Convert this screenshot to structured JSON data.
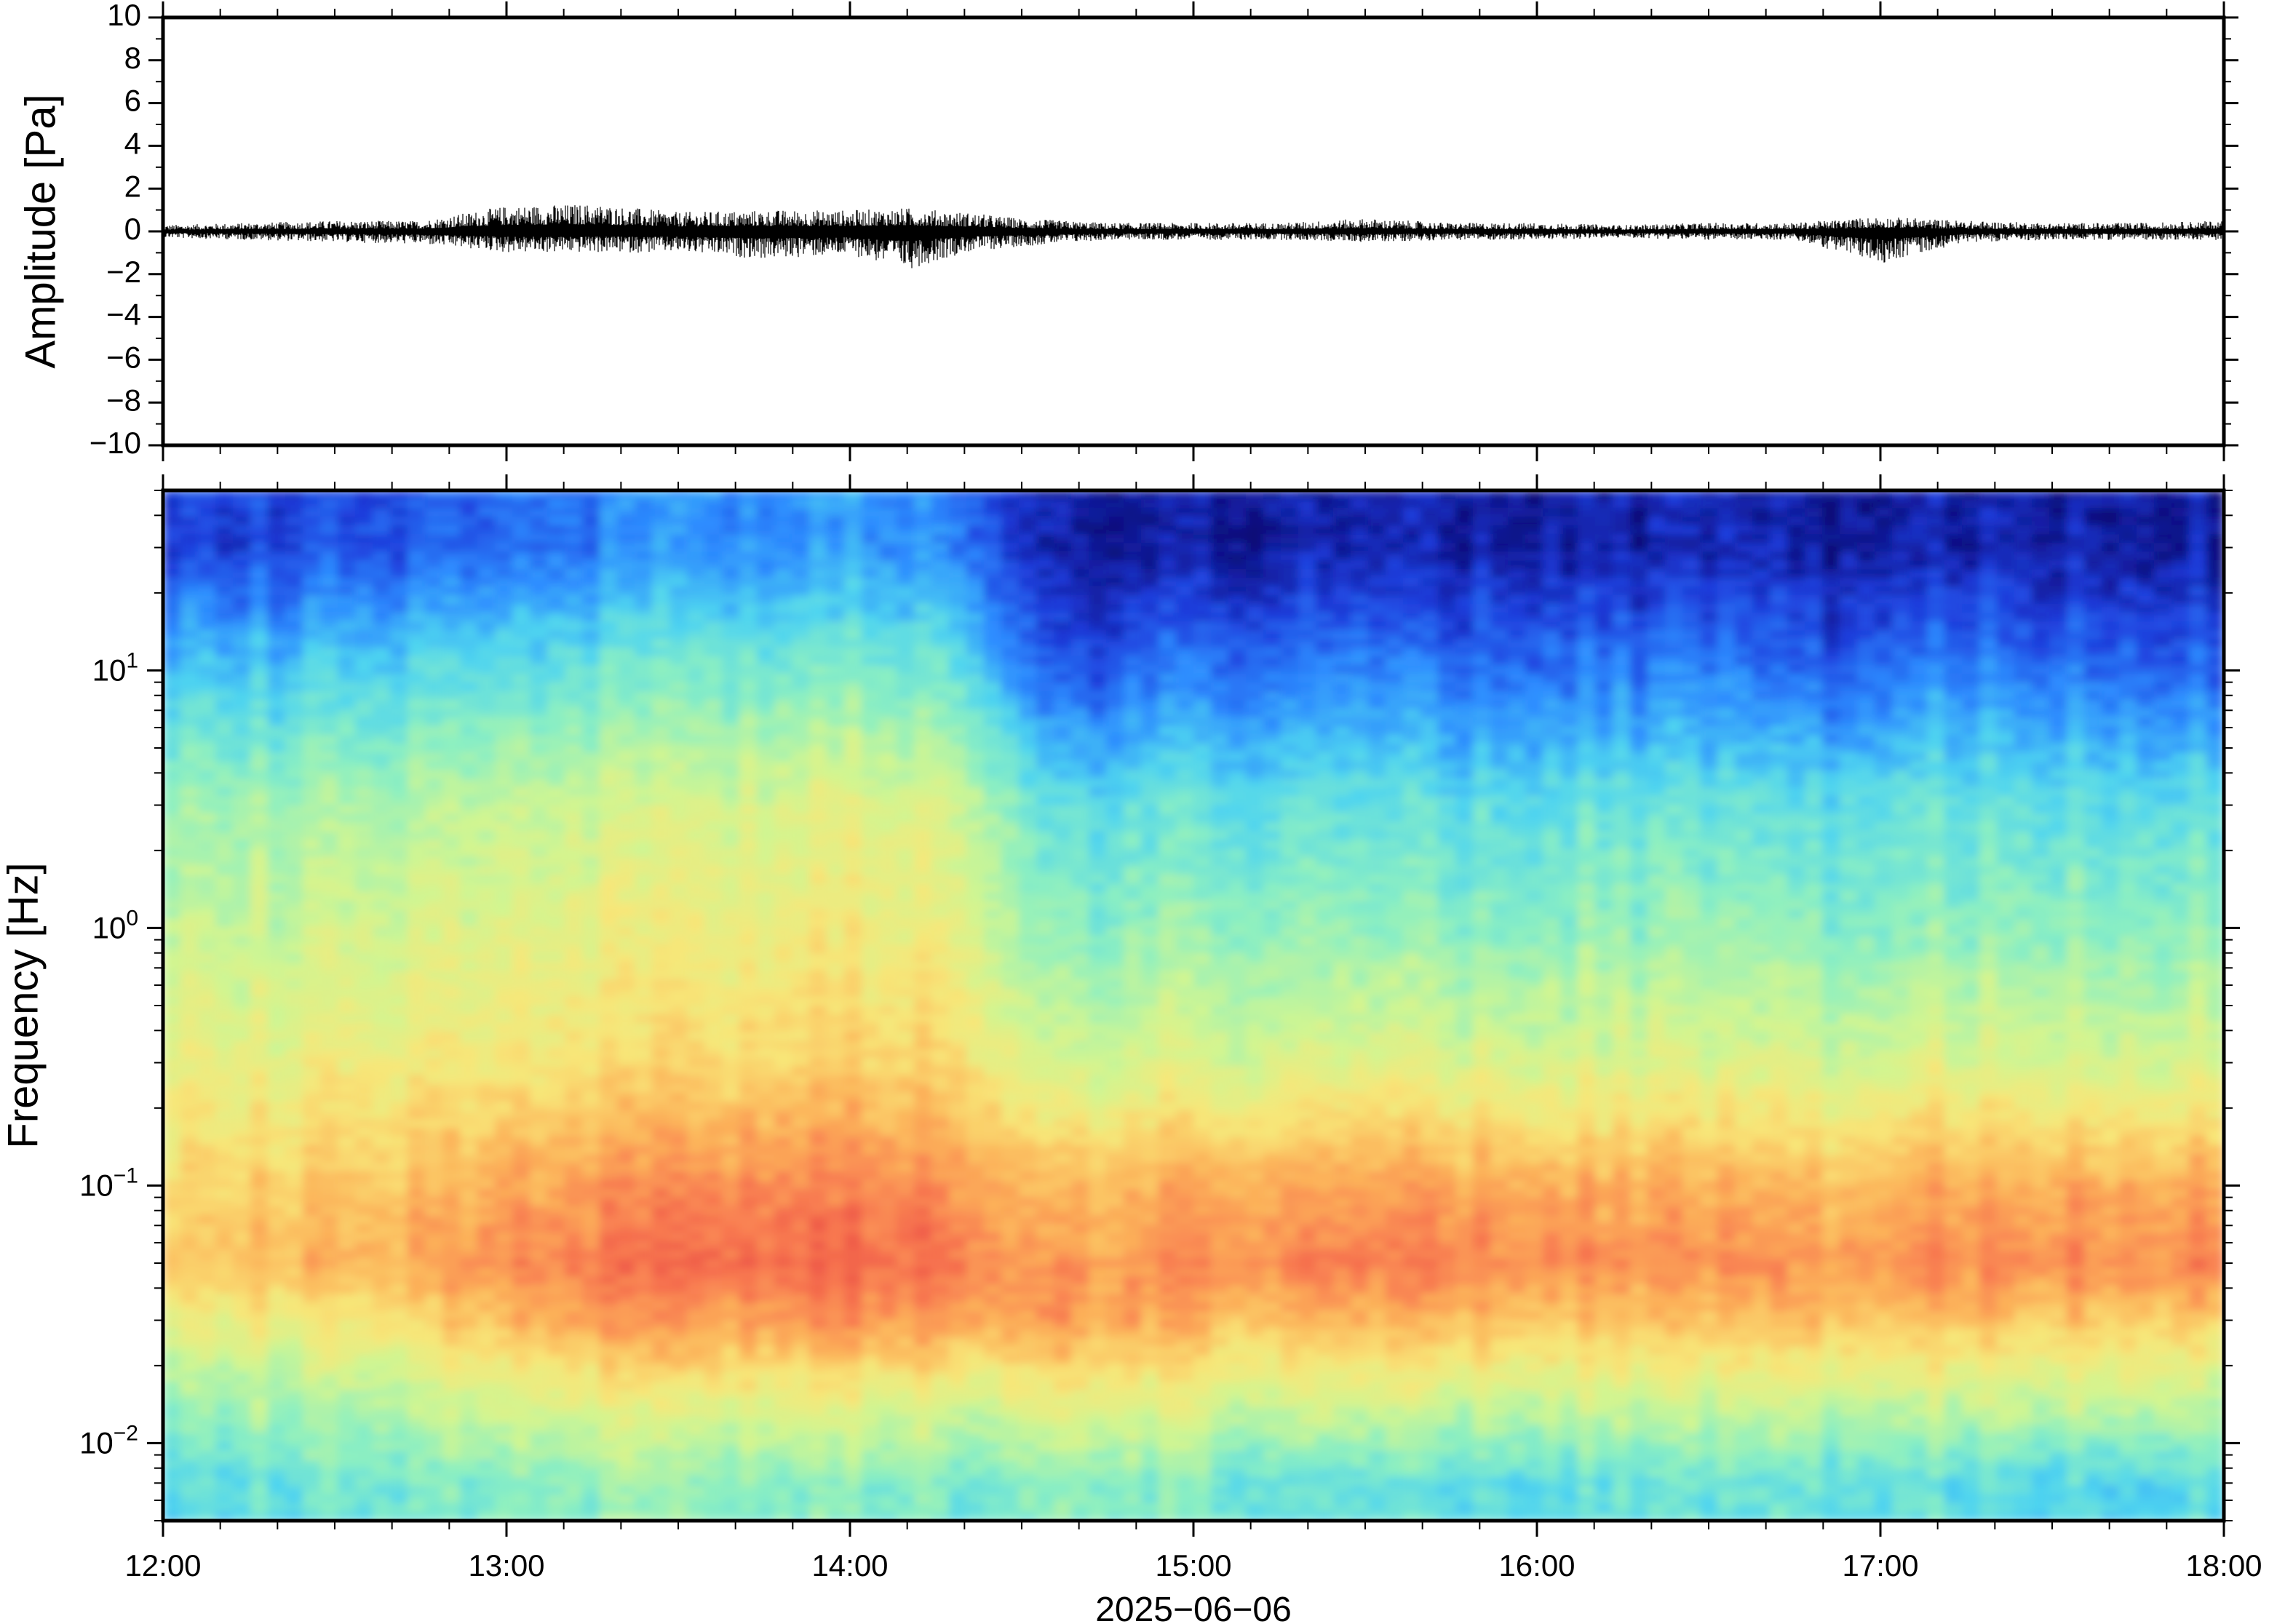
{
  "chart_data": [
    {
      "type": "line",
      "panel": "waveform",
      "ylabel": "Amplitude [Pa]",
      "ylim": [
        -10,
        10
      ],
      "yticks": [
        10,
        8,
        6,
        4,
        2,
        0,
        -2,
        -4,
        -6,
        -8,
        -10
      ],
      "ytick_labels": [
        "10",
        "8",
        "6",
        "4",
        "2",
        "0",
        "−2",
        "−4",
        "−6",
        "−8",
        "−10"
      ],
      "xlim": [
        "12:00",
        "18:00"
      ],
      "line_color": "#000000",
      "series": [
        {
          "x": [
            "12:00",
            "12:15",
            "12:30",
            "12:45",
            "13:00",
            "13:15",
            "13:30",
            "13:45",
            "14:00",
            "14:10",
            "14:20",
            "14:30",
            "14:45",
            "15:00",
            "15:15",
            "15:30",
            "15:45",
            "16:00",
            "16:15",
            "16:30",
            "16:45",
            "17:00",
            "17:15",
            "17:30",
            "17:45",
            "18:00"
          ],
          "y_max": [
            0.3,
            0.4,
            0.5,
            0.5,
            1.2,
            1.3,
            0.9,
            1.0,
            1.0,
            1.1,
            0.9,
            0.6,
            0.4,
            0.4,
            0.4,
            0.6,
            0.4,
            0.4,
            0.3,
            0.4,
            0.4,
            0.7,
            0.5,
            0.4,
            0.4,
            0.5
          ],
          "y_min": [
            -0.3,
            -0.4,
            -0.5,
            -0.6,
            -1.0,
            -1.0,
            -1.0,
            -1.3,
            -1.1,
            -1.8,
            -1.0,
            -0.7,
            -0.4,
            -0.4,
            -0.4,
            -0.5,
            -0.4,
            -0.4,
            -0.3,
            -0.4,
            -0.4,
            -1.5,
            -0.5,
            -0.4,
            -0.4,
            -0.4
          ]
        }
      ]
    },
    {
      "type": "heatmap",
      "panel": "spectrogram",
      "ylabel": "Frequency [Hz]",
      "yscale": "log",
      "ylim": [
        0.005,
        50
      ],
      "yticks": [
        10,
        1,
        0.1,
        0.01
      ],
      "ytick_labels": [
        {
          "base": "10",
          "exp": "1"
        },
        {
          "base": "10",
          "exp": "0"
        },
        {
          "base": "10",
          "exp": "−1"
        },
        {
          "base": "10",
          "exp": "−2"
        }
      ],
      "xlabel": "2025−06−06",
      "xlim": [
        "12:00",
        "18:00"
      ],
      "xticks": [
        "12:00",
        "13:00",
        "14:00",
        "15:00",
        "16:00",
        "17:00",
        "18:00"
      ],
      "colormap": [
        "#0a0a78",
        "#1e3cdc",
        "#2d8cff",
        "#4ed4f0",
        "#8ef0c0",
        "#d2f590",
        "#f8e678",
        "#fcb45a",
        "#f87850",
        "#e84444"
      ],
      "x": [
        "12:00",
        "12:20",
        "12:40",
        "13:00",
        "13:20",
        "13:40",
        "14:00",
        "14:20",
        "14:36",
        "14:50",
        "15:10",
        "15:30",
        "15:50",
        "16:10",
        "16:30",
        "16:50",
        "17:10",
        "17:30",
        "17:50",
        "18:00"
      ],
      "y": [
        30,
        10,
        3,
        1,
        0.3,
        0.1,
        0.05,
        0.03,
        0.015,
        0.007
      ],
      "z": [
        [
          0.12,
          0.12,
          0.14,
          0.18,
          0.22,
          0.24,
          0.24,
          0.22,
          0.04,
          0.04,
          0.05,
          0.06,
          0.05,
          0.05,
          0.06,
          0.04,
          0.06,
          0.06,
          0.05,
          0.05
        ],
        [
          0.32,
          0.32,
          0.34,
          0.38,
          0.4,
          0.42,
          0.42,
          0.4,
          0.14,
          0.18,
          0.2,
          0.22,
          0.18,
          0.2,
          0.2,
          0.16,
          0.22,
          0.2,
          0.18,
          0.18
        ],
        [
          0.48,
          0.48,
          0.5,
          0.54,
          0.56,
          0.58,
          0.6,
          0.58,
          0.36,
          0.38,
          0.38,
          0.38,
          0.36,
          0.38,
          0.38,
          0.36,
          0.4,
          0.38,
          0.38,
          0.38
        ],
        [
          0.54,
          0.54,
          0.56,
          0.6,
          0.62,
          0.64,
          0.64,
          0.62,
          0.44,
          0.46,
          0.46,
          0.46,
          0.44,
          0.46,
          0.46,
          0.44,
          0.46,
          0.46,
          0.46,
          0.46
        ],
        [
          0.62,
          0.62,
          0.64,
          0.66,
          0.68,
          0.7,
          0.72,
          0.7,
          0.56,
          0.58,
          0.58,
          0.6,
          0.58,
          0.58,
          0.58,
          0.56,
          0.6,
          0.58,
          0.58,
          0.58
        ],
        [
          0.7,
          0.72,
          0.74,
          0.8,
          0.84,
          0.86,
          0.86,
          0.84,
          0.76,
          0.78,
          0.8,
          0.82,
          0.8,
          0.78,
          0.78,
          0.76,
          0.8,
          0.8,
          0.8,
          0.82
        ],
        [
          0.74,
          0.76,
          0.78,
          0.86,
          0.9,
          0.92,
          0.92,
          0.9,
          0.82,
          0.84,
          0.86,
          0.88,
          0.86,
          0.84,
          0.84,
          0.82,
          0.86,
          0.86,
          0.86,
          0.88
        ],
        [
          0.62,
          0.64,
          0.66,
          0.78,
          0.82,
          0.82,
          0.84,
          0.82,
          0.84,
          0.8,
          0.76,
          0.78,
          0.76,
          0.74,
          0.74,
          0.76,
          0.76,
          0.74,
          0.74,
          0.72
        ],
        [
          0.48,
          0.5,
          0.52,
          0.6,
          0.62,
          0.62,
          0.62,
          0.6,
          0.64,
          0.62,
          0.58,
          0.58,
          0.56,
          0.56,
          0.56,
          0.56,
          0.56,
          0.56,
          0.56,
          0.54
        ],
        [
          0.36,
          0.38,
          0.4,
          0.44,
          0.46,
          0.44,
          0.44,
          0.42,
          0.46,
          0.44,
          0.4,
          0.38,
          0.36,
          0.38,
          0.38,
          0.38,
          0.38,
          0.36,
          0.36,
          0.36
        ]
      ]
    }
  ]
}
